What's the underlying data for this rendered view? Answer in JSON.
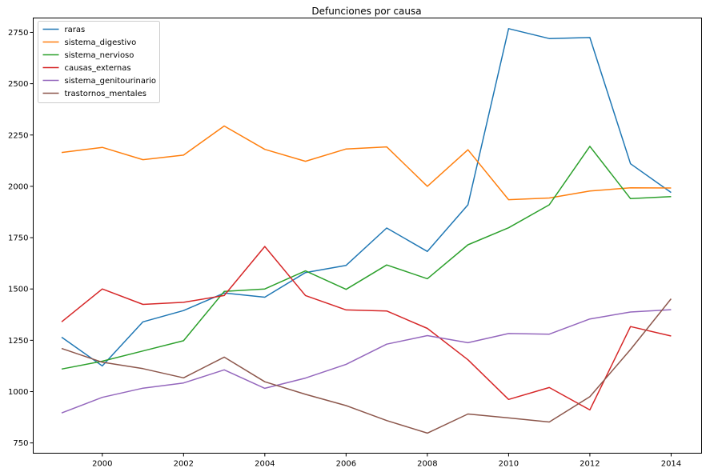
{
  "chart_data": {
    "type": "line",
    "title": "Defunciones por causa",
    "xlabel": "",
    "ylabel": "",
    "xlim": [
      1998.3,
      2014.75
    ],
    "ylim": [
      700,
      2820
    ],
    "xticks": [
      2000,
      2002,
      2004,
      2006,
      2008,
      2010,
      2012,
      2014
    ],
    "yticks": [
      750,
      1000,
      1250,
      1500,
      1750,
      2000,
      2250,
      2500,
      2750
    ],
    "grid": false,
    "legend_position": "top-left",
    "x": [
      1999,
      2000,
      2001,
      2002,
      2003,
      2004,
      2005,
      2006,
      2007,
      2008,
      2009,
      2010,
      2011,
      2012,
      2013,
      2014
    ],
    "series": [
      {
        "name": "raras",
        "color": "#1f77b4",
        "values": [
          1265,
          1125,
          1340,
          1395,
          1480,
          1460,
          1580,
          1615,
          1797,
          1683,
          1910,
          2768,
          2720,
          2725,
          2110,
          1970
        ]
      },
      {
        "name": "sistema_digestivo",
        "color": "#ff7f0e",
        "values": [
          2165,
          2190,
          2130,
          2152,
          2294,
          2180,
          2122,
          2182,
          2192,
          2000,
          2178,
          1935,
          1943,
          1977,
          1993,
          1992
        ]
      },
      {
        "name": "sistema_nervioso",
        "color": "#2ca02c",
        "values": [
          1110,
          1148,
          1198,
          1248,
          1488,
          1500,
          1588,
          1498,
          1617,
          1550,
          1715,
          1798,
          1910,
          2195,
          1940,
          1950
        ]
      },
      {
        "name": "causas_externas",
        "color": "#d62728",
        "values": [
          1340,
          1500,
          1425,
          1435,
          1468,
          1707,
          1468,
          1398,
          1393,
          1308,
          1155,
          962,
          1020,
          911,
          1317,
          1271
        ]
      },
      {
        "name": "sistema_genitourinario",
        "color": "#9467bd",
        "values": [
          896,
          972,
          1017,
          1042,
          1106,
          1016,
          1066,
          1133,
          1231,
          1273,
          1238,
          1283,
          1280,
          1354,
          1388,
          1399
        ]
      },
      {
        "name": "trastornos_mentales",
        "color": "#8c564b",
        "values": [
          1210,
          1143,
          1112,
          1067,
          1168,
          1048,
          987,
          932,
          859,
          798,
          891,
          872,
          852,
          975,
          1205,
          1452
        ]
      }
    ]
  }
}
